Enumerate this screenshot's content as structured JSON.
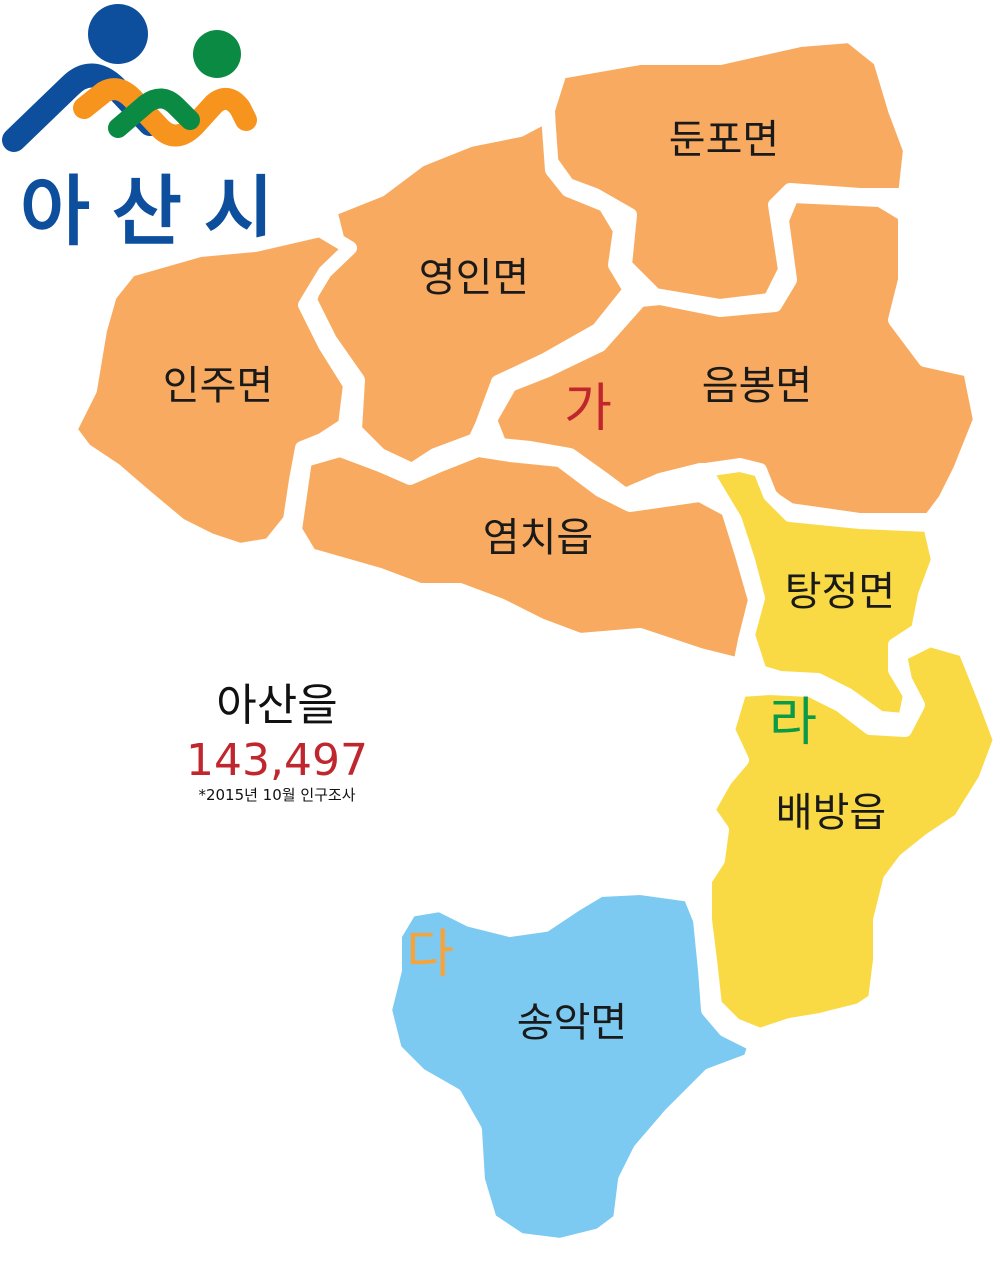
{
  "logo": {
    "text": "아산시",
    "colors": {
      "blue": "#0d4f9c",
      "orange": "#f7941d",
      "green": "#0a8a43"
    }
  },
  "district": {
    "name": "아산을",
    "population": "143,497",
    "population_color": "#c0262d",
    "note": "*2015년 10월 인구조사"
  },
  "regions": [
    {
      "name": "둔포면",
      "group": "가",
      "color": "#f8ab60"
    },
    {
      "name": "영인면",
      "group": "가",
      "color": "#f8ab60"
    },
    {
      "name": "인주면",
      "group": "가",
      "color": "#f8ab60"
    },
    {
      "name": "음봉면",
      "group": "가",
      "color": "#f8ab60"
    },
    {
      "name": "염치읍",
      "group": "가",
      "color": "#f8ab60"
    },
    {
      "name": "탕정면",
      "group": "라",
      "color": "#f9da45"
    },
    {
      "name": "배방읍",
      "group": "라",
      "color": "#f9da45"
    },
    {
      "name": "송악면",
      "group": "다",
      "color": "#7ccaf1"
    }
  ],
  "groups": [
    {
      "label": "가",
      "color": "#c0262d"
    },
    {
      "label": "라",
      "color": "#0a9a48"
    },
    {
      "label": "다",
      "color": "#f7a33a"
    }
  ]
}
